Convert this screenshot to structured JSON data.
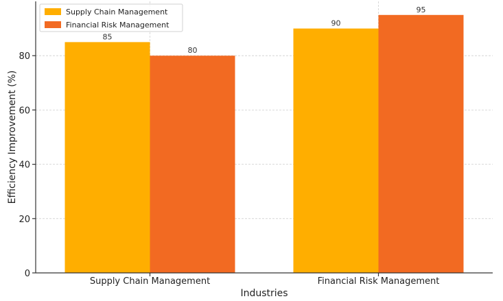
{
  "chart_data": {
    "type": "bar",
    "categories": [
      "Supply Chain Management",
      "Financial Risk Management"
    ],
    "series": [
      {
        "name": "Supply Chain Management",
        "values": [
          85,
          90
        ],
        "color": "#FFAE00"
      },
      {
        "name": "Financial Risk Management",
        "values": [
          80,
          95
        ],
        "color": "#F26A22"
      }
    ],
    "title": "",
    "xlabel": "Industries",
    "ylabel": "Efficiency Improvement (%)",
    "ylim": [
      0,
      100
    ],
    "yticks": [
      0,
      20,
      40,
      60,
      80
    ],
    "grid": true,
    "legend_position": "top-left"
  }
}
